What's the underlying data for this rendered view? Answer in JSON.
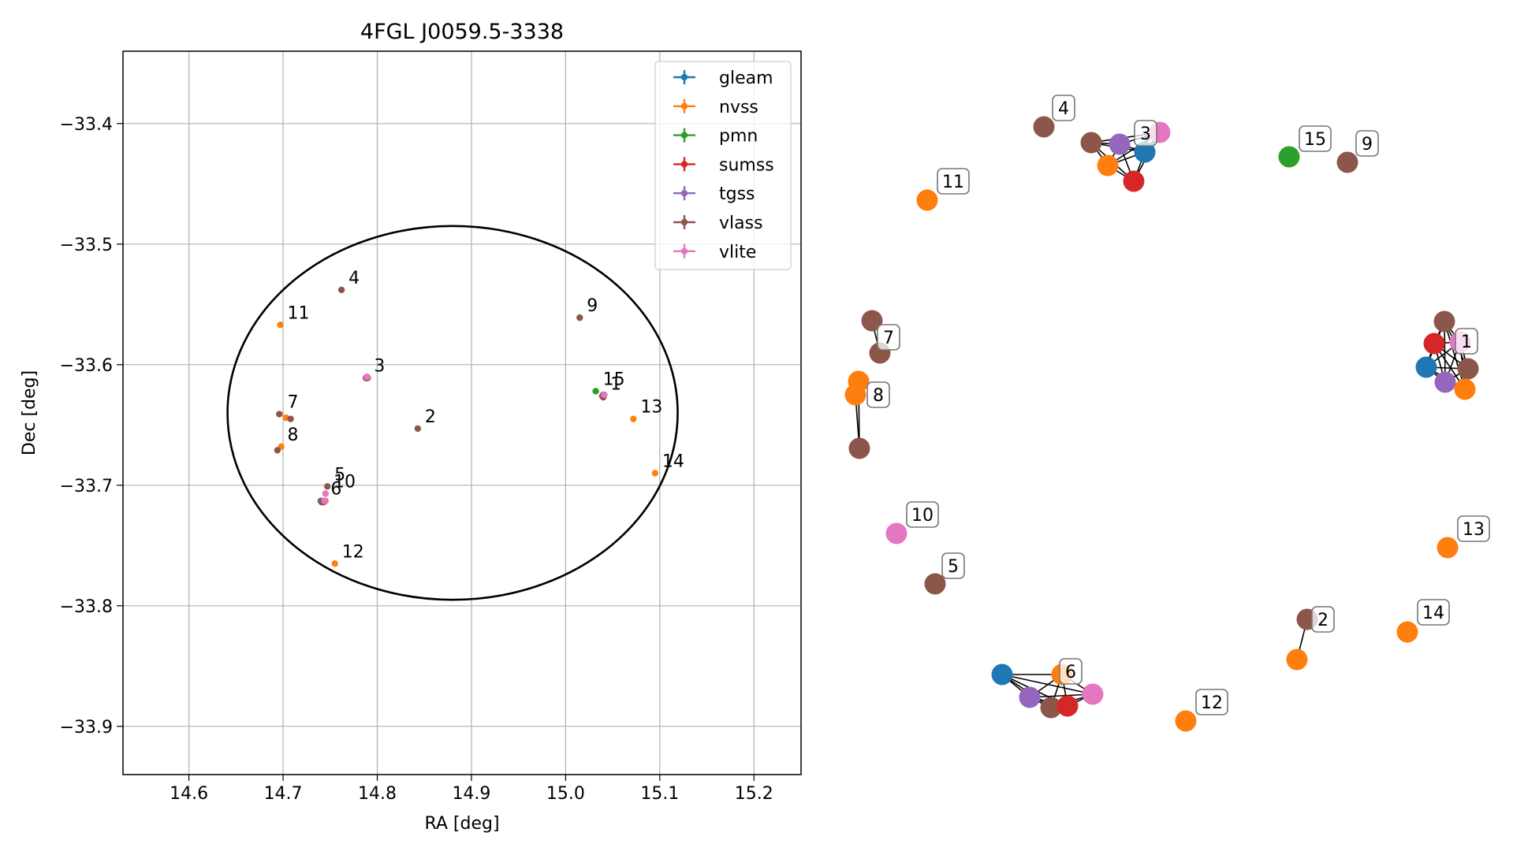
{
  "chart_data": [
    {
      "type": "scatter",
      "title": "4FGL J0059.5-3338",
      "xlabel": "RA [deg]",
      "ylabel": "Dec [deg]",
      "xlim": [
        14.53,
        15.25
      ],
      "ylim": [
        -33.94,
        -33.34
      ],
      "xticks": [
        14.6,
        14.7,
        14.8,
        14.9,
        15.0,
        15.1,
        15.2
      ],
      "xtick_labels": [
        "14.6",
        "14.7",
        "14.8",
        "14.9",
        "15.0",
        "15.1",
        "15.2"
      ],
      "yticks": [
        -33.4,
        -33.5,
        -33.6,
        -33.7,
        -33.8,
        -33.9
      ],
      "ytick_labels": [
        "−33.4",
        "−33.5",
        "−33.6",
        "−33.7",
        "−33.8",
        "−33.9"
      ],
      "grid": true,
      "legend_position": "top-right",
      "ellipse": {
        "ra_center": 14.88,
        "dec_center": -33.64,
        "ra_semi_axis": 0.239,
        "dec_semi_axis": 0.155
      },
      "series": [
        {
          "name": "gleam",
          "color": "#1f77b4",
          "points": [
            [
              14.74,
              -33.713
            ],
            [
              14.79,
              -33.611
            ],
            [
              15.04,
              -33.625
            ]
          ]
        },
        {
          "name": "nvss",
          "color": "#ff7f0e",
          "points": [
            [
              14.697,
              -33.567
            ],
            [
              14.698,
              -33.668
            ],
            [
              14.703,
              -33.644
            ],
            [
              14.745,
              -33.713
            ],
            [
              14.755,
              -33.765
            ],
            [
              15.072,
              -33.645
            ],
            [
              15.095,
              -33.69
            ],
            [
              14.79,
              -33.611
            ],
            [
              15.04,
              -33.626
            ]
          ]
        },
        {
          "name": "pmn",
          "color": "#2ca02c",
          "points": [
            [
              15.032,
              -33.622
            ]
          ]
        },
        {
          "name": "sumss",
          "color": "#d62728",
          "points": [
            [
              14.743,
              -33.714
            ],
            [
              14.789,
              -33.611
            ],
            [
              15.039,
              -33.626
            ]
          ]
        },
        {
          "name": "tgss",
          "color": "#9467bd",
          "points": [
            [
              14.741,
              -33.713
            ],
            [
              14.789,
              -33.611
            ],
            [
              15.04,
              -33.626
            ]
          ]
        },
        {
          "name": "vlass",
          "color": "#8c564b",
          "points": [
            [
              14.762,
              -33.538
            ],
            [
              15.015,
              -33.561
            ],
            [
              14.843,
              -33.653
            ],
            [
              14.696,
              -33.641
            ],
            [
              14.708,
              -33.645
            ],
            [
              14.694,
              -33.671
            ],
            [
              14.747,
              -33.701
            ],
            [
              14.741,
              -33.714
            ],
            [
              14.788,
              -33.611
            ],
            [
              15.041,
              -33.625
            ],
            [
              15.04,
              -33.627
            ]
          ]
        },
        {
          "name": "vlite",
          "color": "#e377c2",
          "points": [
            [
              14.745,
              -33.707
            ],
            [
              14.744,
              -33.713
            ],
            [
              14.789,
              -33.61
            ],
            [
              15.041,
              -33.625
            ]
          ]
        }
      ],
      "annotations": [
        {
          "text": "1",
          "ra": 15.04,
          "dec": -33.626
        },
        {
          "text": "2",
          "ra": 14.843,
          "dec": -33.653
        },
        {
          "text": "3",
          "ra": 14.789,
          "dec": -33.611
        },
        {
          "text": "4",
          "ra": 14.762,
          "dec": -33.538
        },
        {
          "text": "5",
          "ra": 14.747,
          "dec": -33.701
        },
        {
          "text": "6",
          "ra": 14.743,
          "dec": -33.713
        },
        {
          "text": "7",
          "ra": 14.697,
          "dec": -33.641
        },
        {
          "text": "8",
          "ra": 14.697,
          "dec": -33.668
        },
        {
          "text": "9",
          "ra": 15.015,
          "dec": -33.561
        },
        {
          "text": "10",
          "ra": 14.746,
          "dec": -33.707
        },
        {
          "text": "11",
          "ra": 14.697,
          "dec": -33.567
        },
        {
          "text": "12",
          "ra": 14.755,
          "dec": -33.765
        },
        {
          "text": "13",
          "ra": 15.072,
          "dec": -33.645
        },
        {
          "text": "14",
          "ra": 15.095,
          "dec": -33.69
        },
        {
          "text": "15",
          "ra": 15.032,
          "dec": -33.622
        }
      ]
    },
    {
      "type": "network",
      "labels": [
        "1",
        "2",
        "3",
        "4",
        "5",
        "6",
        "7",
        "8",
        "9",
        "10",
        "11",
        "12",
        "13",
        "14",
        "15"
      ],
      "groups": [
        {
          "label": "1",
          "nodes": [
            "vlass",
            "vlite",
            "sumss",
            "gleam",
            "vlass",
            "tgss",
            "nvss"
          ]
        },
        {
          "label": "2",
          "nodes": [
            "vlass",
            "nvss"
          ]
        },
        {
          "label": "3",
          "nodes": [
            "vlass",
            "tgss",
            "gleam",
            "vlite",
            "nvss",
            "sumss"
          ]
        },
        {
          "label": "4",
          "nodes": [
            "vlass"
          ]
        },
        {
          "label": "5",
          "nodes": [
            "vlass"
          ]
        },
        {
          "label": "6",
          "nodes": [
            "gleam",
            "nvss",
            "tgss",
            "vlass",
            "sumss",
            "vlite"
          ]
        },
        {
          "label": "7",
          "nodes": [
            "vlass",
            "vlass"
          ]
        },
        {
          "label": "8",
          "nodes": [
            "nvss",
            "nvss",
            "vlass"
          ]
        },
        {
          "label": "9",
          "nodes": [
            "vlass"
          ]
        },
        {
          "label": "10",
          "nodes": [
            "vlite"
          ]
        },
        {
          "label": "11",
          "nodes": [
            "nvss"
          ]
        },
        {
          "label": "12",
          "nodes": [
            "nvss"
          ]
        },
        {
          "label": "13",
          "nodes": [
            "nvss"
          ]
        },
        {
          "label": "14",
          "nodes": [
            "nvss"
          ]
        },
        {
          "label": "15",
          "nodes": [
            "pmn"
          ]
        }
      ]
    }
  ]
}
